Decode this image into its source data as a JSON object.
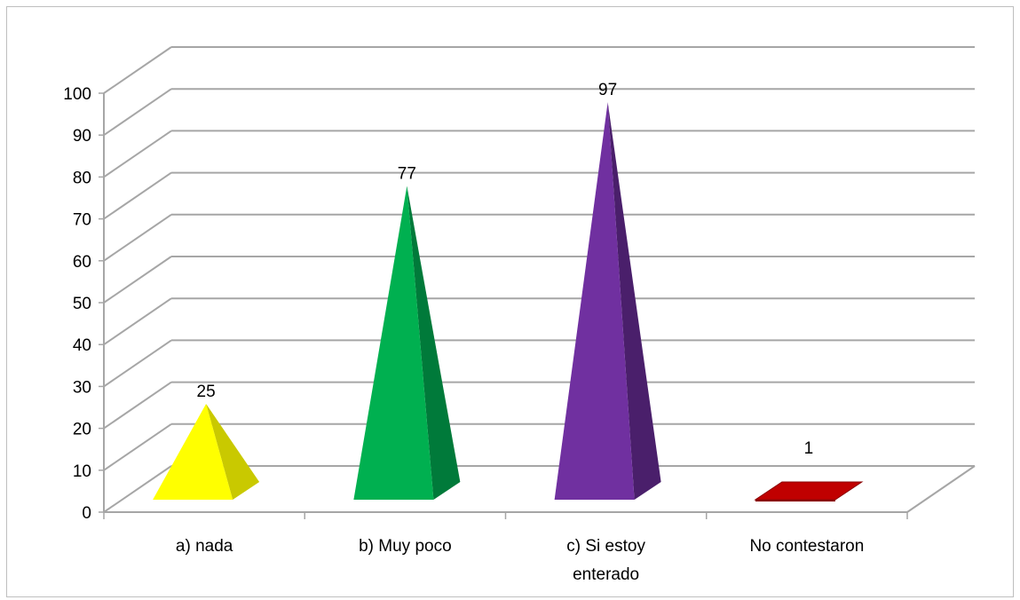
{
  "chart_data": {
    "type": "bar",
    "style": "3d-pyramid",
    "title": "",
    "xlabel": "",
    "ylabel": "",
    "categories": [
      [
        "a) nada"
      ],
      [
        "b) Muy poco"
      ],
      [
        "c) Si estoy",
        "enterado"
      ],
      [
        "No contestaron"
      ]
    ],
    "values": [
      25,
      77,
      97,
      1
    ],
    "data_labels": [
      "25",
      "77",
      "97",
      "1"
    ],
    "ylim": [
      0,
      100
    ],
    "yticks": [
      0,
      10,
      20,
      30,
      40,
      50,
      60,
      70,
      80,
      90,
      100
    ],
    "grid": true,
    "legend": "none",
    "colors": {
      "front": [
        "#ffff00",
        "#00b050",
        "#7030a0",
        "#c00000"
      ],
      "side": [
        "#c9c900",
        "#007a3a",
        "#4a1f6b",
        "#8a0000"
      ],
      "gridline": "#a6a6a6"
    }
  }
}
